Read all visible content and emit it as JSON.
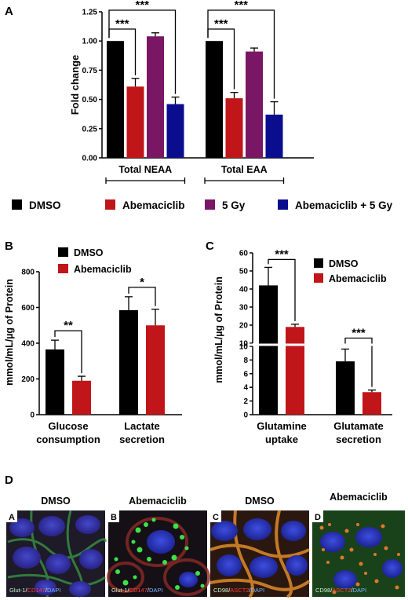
{
  "panels": {
    "A": "A",
    "B": "B",
    "C": "C",
    "D": "D"
  },
  "colors": {
    "DMSO": "#000000",
    "Abemaciclib": "#c0161a",
    "5 Gy": "#7a1765",
    "Abemaciclib + 5 Gy": "#0b0d8f"
  },
  "chart_data": [
    {
      "id": "A",
      "type": "bar",
      "ylabel": "Fold change",
      "ylim": [
        0,
        1.25
      ],
      "yticks": [
        "0.00",
        "0.25",
        "0.50",
        "0.75",
        "1.00",
        "1.25"
      ],
      "categories": [
        "Total NEAA",
        "Total EAA"
      ],
      "series": [
        {
          "name": "DMSO",
          "values": [
            1.0,
            1.0
          ],
          "errors": [
            0,
            0
          ]
        },
        {
          "name": "Abemaciclib",
          "values": [
            0.61,
            0.51
          ],
          "errors": [
            0.07,
            0.05
          ]
        },
        {
          "name": "5 Gy",
          "values": [
            1.04,
            0.91
          ],
          "errors": [
            0.03,
            0.03
          ]
        },
        {
          "name": "Abemaciclib + 5 Gy",
          "values": [
            0.46,
            0.37
          ],
          "errors": [
            0.06,
            0.11
          ]
        }
      ],
      "significance": [
        {
          "group": 0,
          "from": 0,
          "to": 1,
          "label": "***"
        },
        {
          "group": 0,
          "from": 0,
          "to": 3,
          "label": "***"
        },
        {
          "group": 1,
          "from": 0,
          "to": 1,
          "label": "***"
        },
        {
          "group": 1,
          "from": 0,
          "to": 3,
          "label": "***"
        }
      ],
      "legend": [
        "DMSO",
        "Abemaciclib",
        "5 Gy",
        "Abemaciclib + 5 Gy"
      ]
    },
    {
      "id": "B",
      "type": "bar",
      "ylabel": "mmol/mL/µg of Protein",
      "ylim": [
        0,
        800
      ],
      "yticks": [
        "0",
        "200",
        "400",
        "600",
        "800"
      ],
      "categories": [
        [
          "Glucose",
          "consumption"
        ],
        [
          "Lactate",
          "secretion"
        ]
      ],
      "series": [
        {
          "name": "DMSO",
          "values": [
            365,
            585
          ],
          "errors": [
            52,
            75
          ]
        },
        {
          "name": "Abemaciclib",
          "values": [
            190,
            500
          ],
          "errors": [
            25,
            90
          ]
        }
      ],
      "significance": [
        {
          "group": 0,
          "label": "**"
        },
        {
          "group": 1,
          "label": "*"
        }
      ],
      "legend": [
        "DMSO",
        "Abemaciclib"
      ]
    },
    {
      "id": "C",
      "type": "bar",
      "ylabel": "mmol/mL/µg of Protein",
      "ylim_lower": [
        0,
        10
      ],
      "ylim_upper": [
        10,
        60
      ],
      "yticks_lower": [
        "0",
        "2",
        "4",
        "6",
        "8",
        "10"
      ],
      "yticks_upper": [
        "10",
        "20",
        "30",
        "40",
        "50",
        "60"
      ],
      "categories": [
        [
          "Glutamine",
          "uptake"
        ],
        [
          "Glutamate",
          "secretion"
        ]
      ],
      "series": [
        {
          "name": "DMSO",
          "values": [
            42,
            7.8
          ],
          "errors": [
            10,
            1.8
          ]
        },
        {
          "name": "Abemaciclib",
          "values": [
            19,
            3.3
          ],
          "errors": [
            1.5,
            0.3
          ]
        }
      ],
      "significance": [
        {
          "group": 0,
          "label": "***"
        },
        {
          "group": 1,
          "label": "***"
        }
      ],
      "legend": [
        "DMSO",
        "Abemaciclib"
      ]
    }
  ],
  "micro": {
    "titles": [
      "DMSO",
      "Abemaciclib",
      "DMSO",
      "Abemaciclib"
    ],
    "letters": [
      "A",
      "B",
      "C",
      "D"
    ],
    "captions": [
      [
        {
          "t": "Glut-1",
          "c": "#c8f0c8"
        },
        {
          "t": "/",
          "c": "#ffffff"
        },
        {
          "t": "CD147",
          "c": "#ff3b3b"
        },
        {
          "t": "/",
          "c": "#ffffff"
        },
        {
          "t": "DAPI",
          "c": "#7fb2ff"
        }
      ],
      [
        {
          "t": "Glut-1",
          "c": "#c8f0c8"
        },
        {
          "t": "/",
          "c": "#ffffff"
        },
        {
          "t": "CD147",
          "c": "#ff3b3b"
        },
        {
          "t": "/",
          "c": "#ffffff"
        },
        {
          "t": "DAPI",
          "c": "#7fb2ff"
        }
      ],
      [
        {
          "t": "CD98",
          "c": "#c8f0c8"
        },
        {
          "t": "/",
          "c": "#ffffff"
        },
        {
          "t": "ASCT2",
          "c": "#ff3b3b"
        },
        {
          "t": "/",
          "c": "#ffffff"
        },
        {
          "t": "DAPI",
          "c": "#7fb2ff"
        }
      ],
      [
        {
          "t": "CD98",
          "c": "#c8f0c8"
        },
        {
          "t": "/",
          "c": "#ffffff"
        },
        {
          "t": "ASCT2",
          "c": "#ff3b3b"
        },
        {
          "t": "/",
          "c": "#ffffff"
        },
        {
          "t": "DAPI",
          "c": "#7fb2ff"
        }
      ]
    ]
  }
}
